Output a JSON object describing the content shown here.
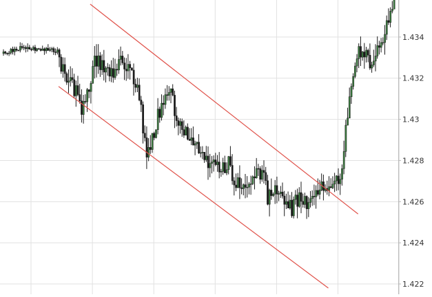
{
  "chart_data": {
    "type": "candlestick",
    "title": "",
    "xlabel": "",
    "ylabel": "",
    "ylim": [
      1.4215,
      1.4358
    ],
    "y_axis_position": "right",
    "grid": true,
    "y_ticks": [
      "1.434",
      "1.432",
      "1.43",
      "1.428",
      "1.426",
      "1.424",
      "1.422"
    ],
    "y_tick_values": [
      1.434,
      1.432,
      1.43,
      1.428,
      1.426,
      1.424,
      1.422
    ],
    "x_index_range": [
      0,
      230
    ],
    "x_grid_indices": [
      15,
      48,
      81,
      114,
      147,
      180,
      213
    ],
    "colors": {
      "background": "#ffffff",
      "grid": "#e1e1e1",
      "up_candle": "#3a7d3e",
      "down_candle": "#1a1a1a",
      "wick": "#1a1a1a",
      "channel": "#e0524a",
      "axis_text": "#333333",
      "axis_line": "#bbbbbb"
    },
    "channel_lines": [
      {
        "name": "upper",
        "points": [
          [
            47,
            1.4356
          ],
          [
            191,
            1.4254
          ]
        ]
      },
      {
        "name": "lower",
        "points": [
          [
            30,
            1.4316
          ],
          [
            175,
            1.4218
          ]
        ]
      }
    ],
    "trend_anchors": [
      [
        0,
        1.4332
      ],
      [
        6,
        1.4334
      ],
      [
        12,
        1.4335
      ],
      [
        20,
        1.4334
      ],
      [
        26,
        1.4334
      ],
      [
        29,
        1.4333
      ],
      [
        33,
        1.4321
      ],
      [
        38,
        1.4315
      ],
      [
        42,
        1.4305
      ],
      [
        46,
        1.4315
      ],
      [
        49,
        1.433
      ],
      [
        54,
        1.4324
      ],
      [
        60,
        1.4323
      ],
      [
        64,
        1.433
      ],
      [
        69,
        1.4322
      ],
      [
        72,
        1.4318
      ],
      [
        75,
        1.4296
      ],
      [
        77,
        1.4283
      ],
      [
        80,
        1.429
      ],
      [
        83,
        1.4302
      ],
      [
        86,
        1.431
      ],
      [
        89,
        1.4317
      ],
      [
        92,
        1.4305
      ],
      [
        95,
        1.4295
      ],
      [
        99,
        1.4292
      ],
      [
        104,
        1.4285
      ],
      [
        108,
        1.4281
      ],
      [
        114,
        1.4278
      ],
      [
        118,
        1.4275
      ],
      [
        121,
        1.4278
      ],
      [
        125,
        1.427
      ],
      [
        129,
        1.4266
      ],
      [
        133,
        1.4272
      ],
      [
        139,
        1.4275
      ],
      [
        142,
        1.4262
      ],
      [
        146,
        1.4268
      ],
      [
        150,
        1.4262
      ],
      [
        155,
        1.4256
      ],
      [
        159,
        1.4263
      ],
      [
        163,
        1.4258
      ],
      [
        167,
        1.4262
      ],
      [
        171,
        1.4267
      ],
      [
        175,
        1.4268
      ],
      [
        178,
        1.4274
      ],
      [
        181,
        1.4272
      ],
      [
        183,
        1.4287
      ],
      [
        186,
        1.4307
      ],
      [
        188,
        1.4318
      ],
      [
        191,
        1.4333
      ],
      [
        195,
        1.433
      ],
      [
        199,
        1.4327
      ],
      [
        203,
        1.4339
      ],
      [
        207,
        1.4348
      ],
      [
        210,
        1.4362
      ]
    ]
  }
}
